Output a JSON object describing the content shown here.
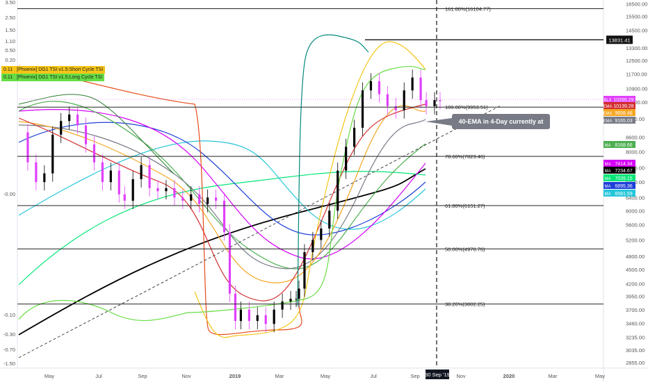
{
  "chart_data": {
    "type": "candlestick",
    "title": "",
    "price_scale": "log",
    "y_right_ticks": [
      "16500.00",
      "15500.00",
      "14500.00",
      "13300.00",
      "12500.00",
      "11700.00",
      "10900.00",
      "10200.00",
      "9400.00",
      "8600.00",
      "8000.00",
      "7400.00",
      "6900.00",
      "6400.00",
      "6000.00",
      "5600.00",
      "5200.00",
      "4800.00",
      "4500.00",
      "4200.00",
      "3950.00",
      "3700.00",
      "3460.00",
      "3235.00",
      "3035.00",
      "2855.00"
    ],
    "y_left_ticks": [
      "3.50",
      "2.50",
      "1.50",
      "1.10",
      "0.50",
      "0.20",
      "-0.00",
      "-0.10",
      "-0.30",
      "-0.70",
      "-1.50"
    ],
    "x_ticks": [
      "May",
      "Jul",
      "Sep",
      "Nov",
      "2019",
      "Mar",
      "May",
      "Jul",
      "Sep",
      "Nov",
      "2020",
      "Mar",
      "May"
    ],
    "x_highlight": "30 Sep '19",
    "fib_levels": [
      {
        "label": "161.80%(16104.77)",
        "value": 16104.77
      },
      {
        "label": "100.00%(9953.51)",
        "value": 9953.51
      },
      {
        "label": "78.60%(7823.46)",
        "value": 7823.46
      },
      {
        "label": "61.80%(6151.27)",
        "value": 6151.27
      },
      {
        "label": "50.00%(4976.76)",
        "value": 4976.76
      },
      {
        "label": "38.20%(3802.25)",
        "value": 3802.25
      }
    ],
    "horizontal_line": {
      "value": 13831.41,
      "label": "13831.41"
    },
    "price_badges": [
      {
        "name": "BLX",
        "value": "10265.29",
        "color": "#e040fb"
      },
      {
        "name": "EMA",
        "value": "10139.28",
        "color": "#d32f2f"
      },
      {
        "name": "EMA",
        "value": "9658.46",
        "color": "#f5a623"
      },
      {
        "name": "EMA",
        "value": "9165.03",
        "color": "#787b86"
      },
      {
        "name": "MA",
        "value": "8168.66",
        "color": "#4caf50"
      },
      {
        "name": "MA",
        "value": "7414.34",
        "color": "#d500f9"
      },
      {
        "name": "MA",
        "value": "7234.67",
        "color": "#000000"
      },
      {
        "name": "MA",
        "value": "7039.15",
        "color": "#00e676"
      },
      {
        "name": "MA",
        "value": "6895.36",
        "color": "#1e40d8"
      },
      {
        "name": "MA",
        "value": "6581.59",
        "color": "#26c6da"
      }
    ],
    "legend": [
      {
        "value": "0.11",
        "label": "[Phoenix] DG1 TSI v1.5:Short Cycle TSI",
        "color": "#f5c518"
      },
      {
        "value": "0.11",
        "label": "[Phoenix] DG1 TSI v1.5:Long Cycle TSI",
        "color": "#66dd44"
      }
    ],
    "annotation": "40-EMA in 4-Day currently at $9,165",
    "series": [
      {
        "name": "Price",
        "points": [
          [
            0,
            8800
          ],
          [
            3,
            7600
          ],
          [
            6,
            6900
          ],
          [
            9,
            7200
          ],
          [
            12,
            8700
          ],
          [
            15,
            9300
          ],
          [
            18,
            9600
          ],
          [
            21,
            9100
          ],
          [
            24,
            8300
          ],
          [
            27,
            7600
          ],
          [
            30,
            6900
          ],
          [
            33,
            7300
          ],
          [
            36,
            6500
          ],
          [
            38,
            6300
          ],
          [
            41,
            7000
          ],
          [
            44,
            7500
          ],
          [
            47,
            6700
          ],
          [
            50,
            6600
          ],
          [
            53,
            6700
          ],
          [
            56,
            6400
          ],
          [
            59,
            6300
          ],
          [
            62,
            6500
          ],
          [
            65,
            6200
          ],
          [
            68,
            6400
          ],
          [
            71,
            6300
          ],
          [
            74,
            5400
          ],
          [
            76,
            4000
          ],
          [
            78,
            3500
          ],
          [
            80,
            3700
          ],
          [
            83,
            3500
          ],
          [
            86,
            3600
          ],
          [
            89,
            3450
          ],
          [
            92,
            3700
          ],
          [
            95,
            3850
          ],
          [
            98,
            3900
          ],
          [
            100,
            3900
          ],
          [
            101,
            4100
          ],
          [
            103,
            4900
          ],
          [
            106,
            5200
          ],
          [
            109,
            5500
          ],
          [
            112,
            6000
          ],
          [
            115,
            7300
          ],
          [
            118,
            8200
          ],
          [
            121,
            9000
          ],
          [
            124,
            10800
          ],
          [
            127,
            11300
          ],
          [
            130,
            10600
          ],
          [
            133,
            10000
          ],
          [
            136,
            9800
          ],
          [
            139,
            10800
          ],
          [
            142,
            11500
          ],
          [
            145,
            10300
          ],
          [
            147,
            10000
          ],
          [
            150,
            10300
          ],
          [
            152,
            10250
          ]
        ]
      }
    ]
  }
}
